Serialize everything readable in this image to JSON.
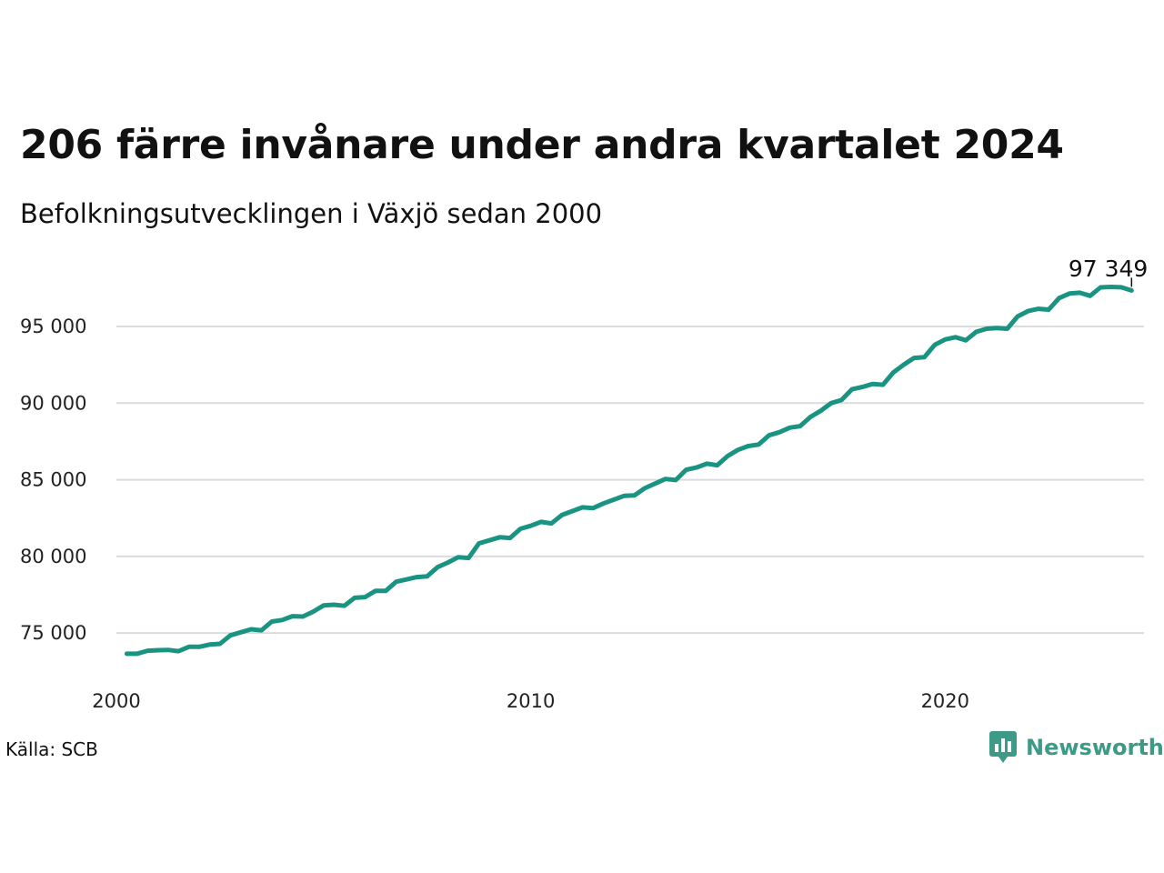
{
  "title": "206 färre invånare under andra kvartalet 2024",
  "subtitle": "Befolkningsutvecklingen i Växjö sedan 2000",
  "source": "Källa: SCB",
  "brand": "Newsworthy",
  "colors": {
    "line": "#1a9482",
    "grid": "#dcdcdc",
    "brand": "#3c9a86"
  },
  "chart_data": {
    "type": "line",
    "title": "206 färre invånare under andra kvartalet 2024",
    "subtitle": "Befolkningsutvecklingen i Växjö sedan 2000",
    "xlabel": "",
    "ylabel": "",
    "xlim": [
      2000,
      2024.8
    ],
    "ylim": [
      72400,
      98500
    ],
    "grid": true,
    "legend": "none",
    "y_ticks": [
      {
        "value": 75000,
        "label": "75 000"
      },
      {
        "value": 80000,
        "label": "80 000"
      },
      {
        "value": 85000,
        "label": "85 000"
      },
      {
        "value": 90000,
        "label": "90 000"
      },
      {
        "value": 95000,
        "label": "95 000"
      }
    ],
    "x_ticks": [
      {
        "value": 2000,
        "label": "2000"
      },
      {
        "value": 2010,
        "label": "2010"
      },
      {
        "value": 2020,
        "label": "2020"
      }
    ],
    "end_label": "97 349",
    "series": [
      {
        "x": [
          2000.25,
          2000.5,
          2000.75,
          2001.0,
          2001.25,
          2001.5,
          2001.75,
          2002.0,
          2002.25,
          2002.5,
          2002.75,
          2003.0,
          2003.25,
          2003.5,
          2003.75,
          2004.0,
          2004.25,
          2004.5,
          2004.75,
          2005.0,
          2005.25,
          2005.5,
          2005.75,
          2006.0,
          2006.25,
          2006.5,
          2006.75,
          2007.0,
          2007.25,
          2007.5,
          2007.75,
          2008.0,
          2008.25,
          2008.5,
          2008.75,
          2009.0,
          2009.25,
          2009.5,
          2009.75,
          2010.0,
          2010.25,
          2010.5,
          2010.75,
          2011.0,
          2011.25,
          2011.5,
          2011.75,
          2012.0,
          2012.25,
          2012.5,
          2012.75,
          2013.0,
          2013.25,
          2013.5,
          2013.75,
          2014.0,
          2014.25,
          2014.5,
          2014.75,
          2015.0,
          2015.25,
          2015.5,
          2015.75,
          2016.0,
          2016.25,
          2016.5,
          2016.75,
          2017.0,
          2017.25,
          2017.5,
          2017.75,
          2018.0,
          2018.25,
          2018.5,
          2018.75,
          2019.0,
          2019.25,
          2019.5,
          2019.75,
          2020.0,
          2020.25,
          2020.5,
          2020.75,
          2021.0,
          2021.25,
          2021.5,
          2021.75,
          2022.0,
          2022.25,
          2022.5,
          2022.75,
          2023.0,
          2023.25,
          2023.5,
          2023.75,
          2024.0,
          2024.25,
          2024.5
        ],
        "values": [
          73650,
          73650,
          73850,
          73880,
          73900,
          73820,
          74100,
          74100,
          74250,
          74300,
          74850,
          75050,
          75250,
          75180,
          75750,
          75850,
          76100,
          76080,
          76400,
          76800,
          76850,
          76780,
          77300,
          77350,
          77750,
          77750,
          78350,
          78500,
          78650,
          78700,
          79300,
          79600,
          79950,
          79900,
          80850,
          81050,
          81250,
          81200,
          81800,
          82000,
          82250,
          82150,
          82700,
          82950,
          83200,
          83150,
          83450,
          83700,
          83950,
          83980,
          84450,
          84750,
          85050,
          84980,
          85650,
          85800,
          86050,
          85950,
          86550,
          86950,
          87200,
          87300,
          87900,
          88100,
          88400,
          88500,
          89100,
          89500,
          90000,
          90200,
          90900,
          91050,
          91250,
          91200,
          92000,
          92500,
          92950,
          93000,
          93800,
          94150,
          94300,
          94100,
          94650,
          94850,
          94900,
          94850,
          95650,
          96000,
          96150,
          96100,
          96850,
          97150,
          97200,
          97000,
          97550,
          97580,
          97555,
          97349
        ]
      }
    ]
  }
}
